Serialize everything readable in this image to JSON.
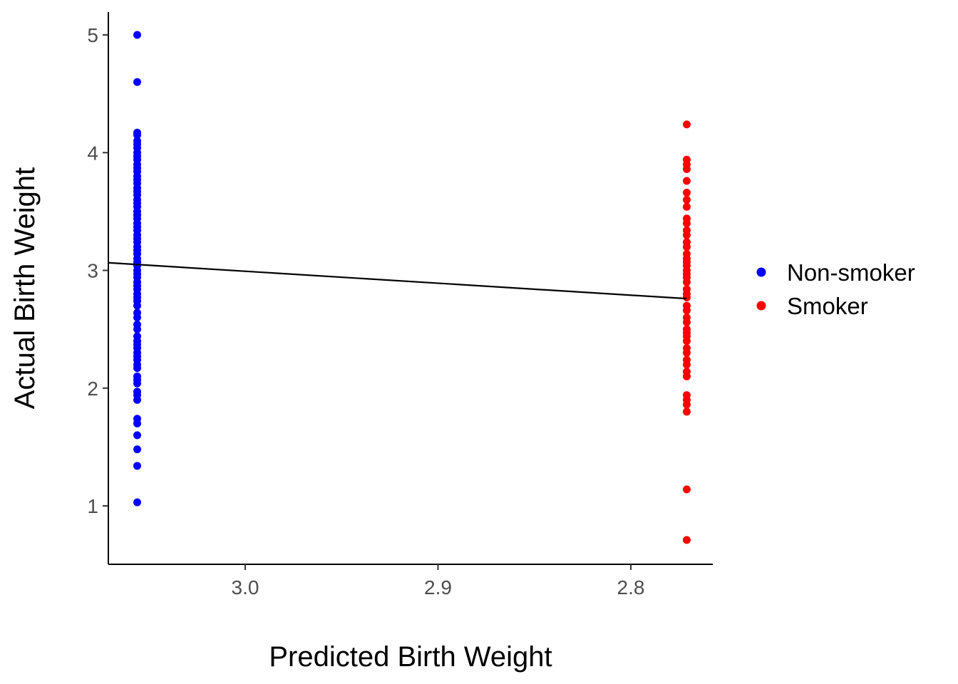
{
  "chart_data": {
    "type": "scatter",
    "title": "",
    "xlabel": "Predicted Birth Weight",
    "ylabel": "Actual Birth Weight",
    "x_reversed": true,
    "xlim": [
      3.071,
      2.771
    ],
    "ylim": [
      0.5,
      5.2
    ],
    "x_ticks": [
      {
        "value": 3.0,
        "label": "3.0"
      },
      {
        "value": 2.9,
        "label": "2.9"
      },
      {
        "value": 2.8,
        "label": "2.8"
      }
    ],
    "y_ticks": [
      {
        "value": 1,
        "label": "1"
      },
      {
        "value": 2,
        "label": "2"
      },
      {
        "value": 3,
        "label": "3"
      },
      {
        "value": 4,
        "label": "4"
      },
      {
        "value": 5,
        "label": "5"
      }
    ],
    "grid": false,
    "legend_position": "right",
    "series": [
      {
        "name": "Non-smoker",
        "color": "#0000ff",
        "x": 3.056,
        "y": [
          5.0,
          4.6,
          4.17,
          4.15,
          4.1,
          4.07,
          4.04,
          4.0,
          3.97,
          3.94,
          3.9,
          3.87,
          3.84,
          3.8,
          3.77,
          3.74,
          3.7,
          3.67,
          3.64,
          3.6,
          3.57,
          3.54,
          3.5,
          3.47,
          3.44,
          3.4,
          3.37,
          3.34,
          3.3,
          3.27,
          3.24,
          3.2,
          3.17,
          3.14,
          3.1,
          3.07,
          3.04,
          3.0,
          2.97,
          2.94,
          2.9,
          2.87,
          2.84,
          2.8,
          2.77,
          2.74,
          2.7,
          2.64,
          2.6,
          2.54,
          2.5,
          2.44,
          2.4,
          2.37,
          2.34,
          2.3,
          2.27,
          2.24,
          2.2,
          2.17,
          2.1,
          2.07,
          2.04,
          1.97,
          1.94,
          1.9,
          1.74,
          1.7,
          1.6,
          1.48,
          1.34,
          1.03
        ]
      },
      {
        "name": "Smoker",
        "color": "#ff0000",
        "x": 2.771,
        "y": [
          4.24,
          3.94,
          3.9,
          3.86,
          3.76,
          3.66,
          3.6,
          3.54,
          3.44,
          3.4,
          3.34,
          3.3,
          3.24,
          3.2,
          3.14,
          3.1,
          3.07,
          3.04,
          3.0,
          2.97,
          2.94,
          2.9,
          2.84,
          2.8,
          2.77,
          2.7,
          2.66,
          2.6,
          2.56,
          2.5,
          2.47,
          2.44,
          2.4,
          2.34,
          2.3,
          2.24,
          2.2,
          2.14,
          2.1,
          1.94,
          1.9,
          1.86,
          1.8,
          1.14,
          0.71
        ]
      }
    ],
    "fit_line": {
      "color": "#000000",
      "x": [
        3.071,
        2.771
      ],
      "y": [
        3.065,
        2.76
      ]
    }
  }
}
